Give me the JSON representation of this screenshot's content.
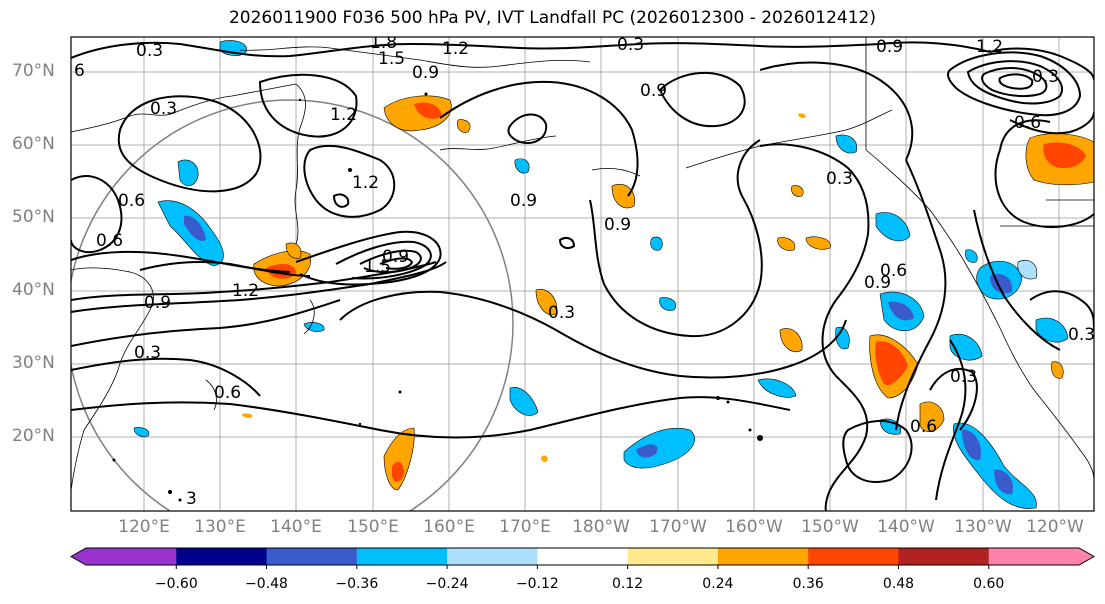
{
  "title": "2026011900 F036 500 hPa PV, IVT Landfall PC (2026012300 - 2026012412)",
  "map": {
    "lat_labels": [
      "70°N",
      "60°N",
      "50°N",
      "40°N",
      "30°N",
      "20°N"
    ],
    "lon_labels": [
      "120°E",
      "130°E",
      "140°E",
      "150°E",
      "160°E",
      "170°E",
      "180°W",
      "170°W",
      "160°W",
      "150°W",
      "140°W",
      "130°W",
      "120°W"
    ],
    "contour_labels": [
      "0.3",
      "1.8",
      "1.5",
      "1.2",
      "0.3",
      "0.9",
      "1.2",
      "6",
      "0.3",
      "1.2",
      "0.9",
      "0.9",
      "0.6",
      "0.3",
      "1.2",
      "0.6",
      "0.9",
      "0.9",
      "0.6",
      "0.9",
      "1.2",
      "0.9",
      "0.3",
      "1.5",
      "0.9",
      "0.3",
      "0.6",
      "0.3",
      "0.3",
      "0.6",
      "0.6",
      "0.3",
      "3"
    ]
  },
  "colorbar": {
    "ticks": [
      "−0.60",
      "−0.48",
      "−0.36",
      "−0.24",
      "−0.12",
      "0.12",
      "0.24",
      "0.36",
      "0.48",
      "0.60"
    ],
    "colors": [
      "#9932CC",
      "#00008B",
      "#3A5BCC",
      "#00BFFF",
      "#ADDFFF",
      "#FFFFFF",
      "#FFE98C",
      "#FFA500",
      "#FF4500",
      "#B22222",
      "#FF82AB",
      "#FF82AB"
    ]
  }
}
